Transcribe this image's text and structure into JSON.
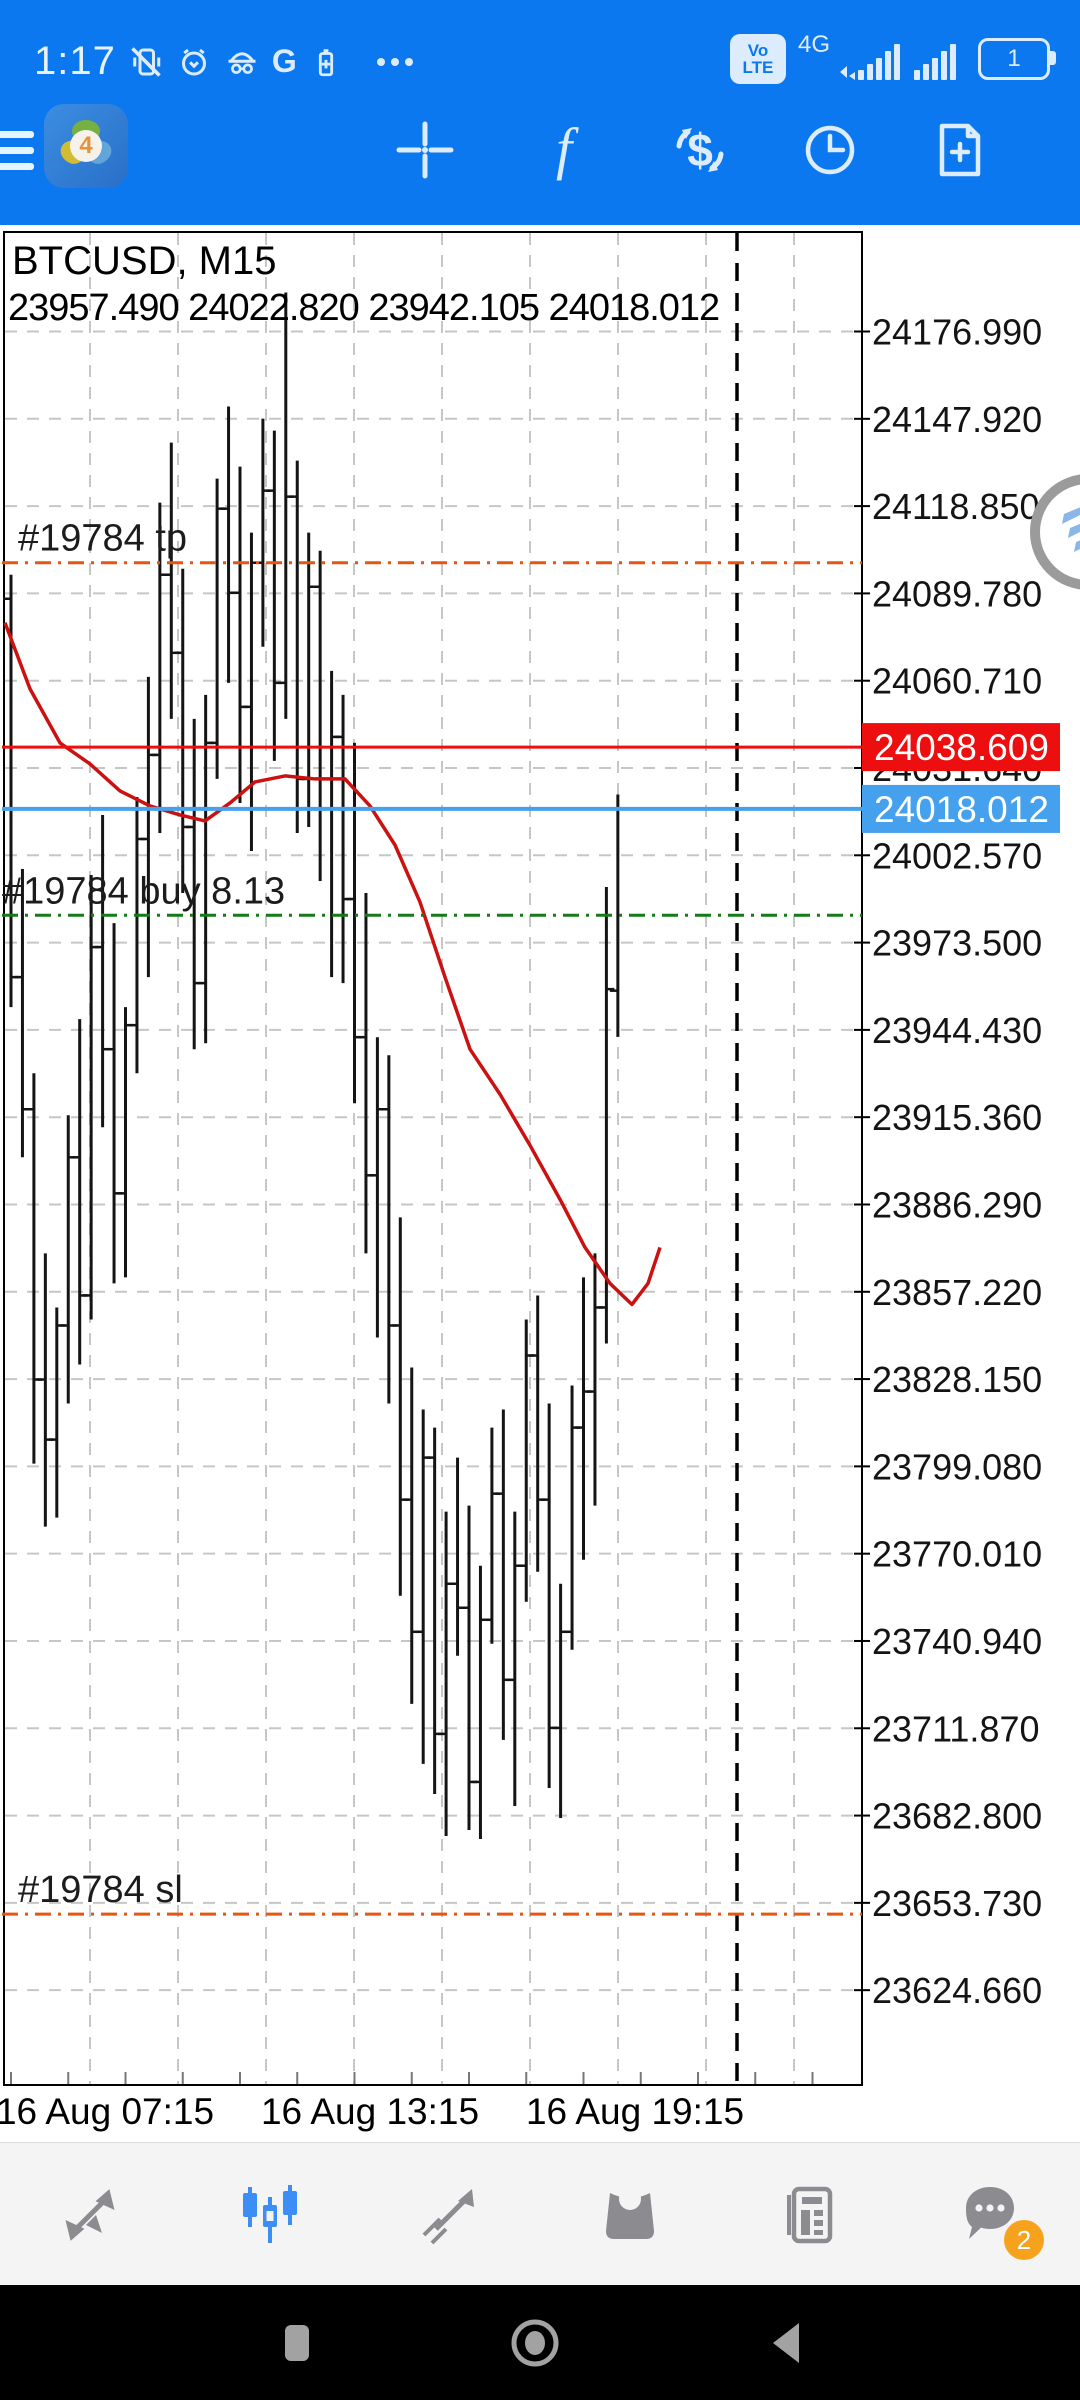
{
  "colors": {
    "header_blue": "#0b78f0",
    "icon_on_blue": "#dcecfd",
    "grid": "#c6c6c6",
    "bar_black": "#141414",
    "ma_red": "#cc1111",
    "bid_red": "#ed0f0f",
    "ask_blue": "#45a0ee",
    "order_orange": "#e65511",
    "order_green": "#167a16",
    "axis_text": "#141414",
    "nav_icon": "#8b8b90",
    "nav_active": "#3c8df5",
    "badge_orange": "#f6a21d",
    "sysnav_icon": "#a2a2a2"
  },
  "status_bar": {
    "time": "1:17",
    "volte_top": "Vo",
    "volte_bottom": "LTE",
    "network_label": "4G",
    "battery_text": "1"
  },
  "app_bar": {
    "logo_badge": "4"
  },
  "chart": {
    "symbol_line": "BTCUSD, M15",
    "ohlc_line": "23957.490 24022.820 23942.105 24018.012",
    "bid_badge": "24038.609",
    "ask_badge": "24018.012",
    "tp_label": "#19784 tp",
    "buy_label": "#19784 buy 8.13",
    "sl_label": "#19784 sl",
    "x_labels": [
      "16 Aug 07:15",
      "16 Aug 13:15",
      "16 Aug 19:15"
    ],
    "y_labels": [
      "24176.990",
      "24147.920",
      "24118.850",
      "24089.780",
      "24060.710",
      "24031.640",
      "24002.570",
      "23973.500",
      "23944.430",
      "23915.360",
      "23886.290",
      "23857.220",
      "23828.150",
      "23799.080",
      "23770.010",
      "23740.940",
      "23711.870",
      "23682.800",
      "23653.730",
      "23624.660"
    ]
  },
  "chart_data": {
    "type": "ohlc-bar",
    "symbol": "BTCUSD",
    "timeframe": "M15",
    "current_bar": {
      "open": 23957.49,
      "high": 24022.82,
      "low": 23942.105,
      "close": 24018.012
    },
    "y_range_visible": [
      23593,
      24212
    ],
    "x_tick_labels": [
      "16 Aug 07:15",
      "16 Aug 13:15",
      "16 Aug 19:15"
    ],
    "grid": true,
    "note": "bar and moving-average values are approximate pixel readings",
    "bars": [
      [
        24088,
        24096,
        23952,
        23962
      ],
      [
        23962,
        23998,
        23902,
        23918
      ],
      [
        23918,
        23930,
        23800,
        23828
      ],
      [
        23828,
        23870,
        23779,
        23808
      ],
      [
        23808,
        23852,
        23782,
        23846
      ],
      [
        23846,
        23916,
        23820,
        23902
      ],
      [
        23902,
        23948,
        23833,
        23856
      ],
      [
        23856,
        23996,
        23848,
        23972
      ],
      [
        23972,
        24016,
        23912,
        23938
      ],
      [
        23938,
        23980,
        23860,
        23890
      ],
      [
        23890,
        23952,
        23862,
        23946
      ],
      [
        23946,
        24022,
        23930,
        24008
      ],
      [
        24008,
        24062,
        23962,
        24036
      ],
      [
        24036,
        24120,
        24010,
        24096
      ],
      [
        24096,
        24140,
        24048,
        24070
      ],
      [
        24070,
        24098,
        23990,
        24012
      ],
      [
        24012,
        24048,
        23938,
        23960
      ],
      [
        23960,
        24056,
        23940,
        24040
      ],
      [
        24040,
        24128,
        24028,
        24118
      ],
      [
        24118,
        24152,
        24060,
        24090
      ],
      [
        24090,
        24132,
        24020,
        24052
      ],
      [
        24052,
        24110,
        24004,
        24100
      ],
      [
        24100,
        24148,
        24072,
        24124
      ],
      [
        24124,
        24144,
        24034,
        24060
      ],
      [
        24060,
        24190,
        24048,
        24122
      ],
      [
        24122,
        24134,
        24010,
        24028
      ],
      [
        24028,
        24110,
        24012,
        24092
      ],
      [
        24092,
        24104,
        23994,
        24018
      ],
      [
        24018,
        24064,
        23962,
        24042
      ],
      [
        24042,
        24056,
        23960,
        23988
      ],
      [
        23988,
        24040,
        23920,
        23942
      ],
      [
        23942,
        23990,
        23870,
        23896
      ],
      [
        23896,
        23942,
        23842,
        23918
      ],
      [
        23918,
        23936,
        23820,
        23846
      ],
      [
        23846,
        23882,
        23756,
        23788
      ],
      [
        23788,
        23832,
        23720,
        23744
      ],
      [
        23744,
        23818,
        23700,
        23802
      ],
      [
        23802,
        23812,
        23690,
        23710
      ],
      [
        23710,
        23784,
        23676,
        23760
      ],
      [
        23760,
        23802,
        23736,
        23752
      ],
      [
        23752,
        23786,
        23678,
        23694
      ],
      [
        23694,
        23766,
        23675,
        23748
      ],
      [
        23748,
        23812,
        23740,
        23790
      ],
      [
        23790,
        23818,
        23708,
        23728
      ],
      [
        23728,
        23784,
        23686,
        23766
      ],
      [
        23766,
        23848,
        23754,
        23836
      ],
      [
        23836,
        23856,
        23764,
        23788
      ],
      [
        23788,
        23820,
        23692,
        23712
      ],
      [
        23712,
        23760,
        23682,
        23744
      ],
      [
        23744,
        23826,
        23738,
        23812
      ],
      [
        23812,
        23862,
        23768,
        23824
      ],
      [
        23824,
        23870,
        23786,
        23852
      ],
      [
        23852,
        23992,
        23840,
        23958
      ],
      [
        23957.49,
        24022.82,
        23942.105,
        24018.012
      ]
    ],
    "ma_line": [
      [
        5,
        24080
      ],
      [
        30,
        24058
      ],
      [
        60,
        24040
      ],
      [
        90,
        24033
      ],
      [
        120,
        24024
      ],
      [
        150,
        24019
      ],
      [
        180,
        24016
      ],
      [
        205,
        24014
      ],
      [
        230,
        24020
      ],
      [
        255,
        24027
      ],
      [
        285,
        24029
      ],
      [
        315,
        24028
      ],
      [
        345,
        24028
      ],
      [
        370,
        24019
      ],
      [
        395,
        24006
      ],
      [
        420,
        23987
      ],
      [
        445,
        23962
      ],
      [
        470,
        23938
      ],
      [
        500,
        23923
      ],
      [
        530,
        23906
      ],
      [
        560,
        23888
      ],
      [
        585,
        23872
      ],
      [
        610,
        23860
      ],
      [
        632,
        23853
      ],
      [
        648,
        23860
      ],
      [
        660,
        23872
      ]
    ],
    "levels": [
      {
        "name": "bid",
        "price": 24038.609,
        "style": "solid",
        "color": "#ed0f0f",
        "badge": "24038.609"
      },
      {
        "name": "ask",
        "price": 24018.012,
        "style": "solid",
        "color": "#45a0ee",
        "badge": "24018.012"
      },
      {
        "name": "tp",
        "price": 24100.0,
        "style": "dashdot",
        "color": "#e65511",
        "label": "#19784 tp"
      },
      {
        "name": "open-buy",
        "price": 23982.6,
        "style": "dashdot",
        "color": "#167a16",
        "label": "#19784 buy 8.13"
      },
      {
        "name": "sl",
        "price": 23650.0,
        "style": "dashdot",
        "color": "#e65511",
        "label": "#19784 sl"
      }
    ]
  },
  "bottom_nav": {
    "items": [
      {
        "name": "quotes"
      },
      {
        "name": "charts",
        "active": true
      },
      {
        "name": "trade"
      },
      {
        "name": "history"
      },
      {
        "name": "news"
      },
      {
        "name": "messages",
        "badge": "2"
      }
    ]
  }
}
